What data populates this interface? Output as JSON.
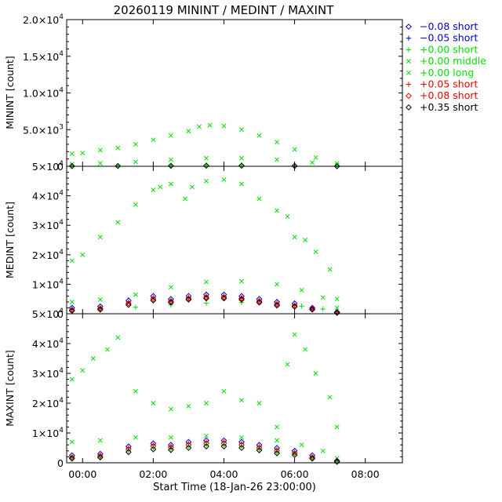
{
  "chart_data": {
    "type": "scatter",
    "title": "20260119 MININT / MEDINT / MAXINT",
    "xlabel": "Start Time (18-Jan-26 23:00:00)",
    "x_unit": "hours after 18-Jan-26 23:00:00",
    "xlim": [
      0.55,
      10.05
    ],
    "x_tick_values": [
      1,
      3,
      5,
      7,
      9
    ],
    "x_tick_labels": [
      "00:00",
      "02:00",
      "04:00",
      "06:00",
      "08:00"
    ],
    "legend_position": "right",
    "legend": [
      {
        "value": "−0.08",
        "kind": "short",
        "marker": "diamond",
        "color": "#0000cc"
      },
      {
        "value": "−0.05",
        "kind": "short",
        "marker": "plus",
        "color": "#0000cc"
      },
      {
        "value": "+0.00",
        "kind": "short",
        "marker": "plus",
        "color": "#00dd00"
      },
      {
        "value": "+0.00",
        "kind": "middle",
        "marker": "cross",
        "color": "#00dd00"
      },
      {
        "value": "+0.00",
        "kind": "long",
        "marker": "cross",
        "color": "#00dd00"
      },
      {
        "value": "+0.05",
        "kind": "short",
        "marker": "plus",
        "color": "#ee0000"
      },
      {
        "value": "+0.08",
        "kind": "short",
        "marker": "diamond",
        "color": "#ee0000"
      },
      {
        "value": "+0.35",
        "kind": "short",
        "marker": "diamond",
        "color": "#000000"
      }
    ],
    "panels": [
      {
        "name": "MININT",
        "ylabel": "MININT [count]",
        "ylim": [
          0,
          20000
        ],
        "y_tick_values": [
          0,
          5000,
          10000,
          15000,
          20000
        ],
        "y_tick_labels": [
          {
            "mant": "0",
            "exp": ""
          },
          {
            "mant": "5.0×10",
            "exp": "3"
          },
          {
            "mant": "1.0×10",
            "exp": "4"
          },
          {
            "mant": "1.5×10",
            "exp": "4"
          },
          {
            "mant": "2.0×10",
            "exp": "4"
          }
        ],
        "series": [
          {
            "name": "+0.00 long",
            "marker": "cross",
            "color": "#00dd00",
            "x": [
              0.7,
              1.0,
              1.5,
              2.0,
              2.5,
              3.0,
              3.5,
              4.0,
              4.3,
              4.6,
              5.0,
              5.5,
              6.0,
              6.5,
              7.0,
              7.6,
              8.2
            ],
            "y": [
              1700,
              1800,
              2200,
              2500,
              3000,
              3600,
              4200,
              4800,
              5400,
              5600,
              5500,
              5000,
              4200,
              3300,
              2300,
              1200,
              400
            ]
          },
          {
            "name": "+0.00 middle",
            "marker": "cross",
            "color": "#00dd00",
            "x": [
              0.7,
              1.5,
              2.5,
              3.5,
              4.5,
              5.5,
              6.5,
              7.5,
              8.2
            ],
            "y": [
              300,
              400,
              600,
              900,
              1100,
              1100,
              900,
              500,
              150
            ]
          },
          {
            "name": "+0.00 short",
            "marker": "plus",
            "color": "#00dd00",
            "x": [
              0.7,
              2.0,
              3.5,
              4.5,
              5.5,
              7.0,
              8.2
            ],
            "y": [
              80,
              100,
              150,
              200,
              200,
              120,
              40
            ]
          },
          {
            "name": "+0.35 short",
            "marker": "diamond",
            "color": "#000000",
            "x": [
              0.7,
              2.0,
              3.5,
              4.5,
              5.5,
              7.0,
              8.2
            ],
            "y": [
              30,
              40,
              60,
              80,
              80,
              50,
              15
            ]
          }
        ]
      },
      {
        "name": "MEDINT",
        "ylabel": "MEDINT [count]",
        "ylim": [
          0,
          50000
        ],
        "y_tick_values": [
          0,
          10000,
          20000,
          30000,
          40000,
          50000
        ],
        "y_tick_labels": [
          {
            "mant": "0",
            "exp": ""
          },
          {
            "mant": "1×10",
            "exp": "4"
          },
          {
            "mant": "2×10",
            "exp": "4"
          },
          {
            "mant": "3×10",
            "exp": "4"
          },
          {
            "mant": "4×10",
            "exp": "4"
          },
          {
            "mant": "5×10",
            "exp": "4"
          }
        ],
        "series": [
          {
            "name": "+0.00 long",
            "marker": "cross",
            "color": "#00dd00",
            "x": [
              0.7,
              1.0,
              1.5,
              2.0,
              2.5,
              3.0,
              3.2,
              3.5,
              3.9,
              4.1,
              4.5,
              5.0,
              5.5,
              6.0,
              6.5,
              6.8,
              7.0,
              7.3,
              7.6,
              8.0,
              8.2
            ],
            "y": [
              18000,
              20000,
              26000,
              31000,
              37000,
              42000,
              43000,
              44000,
              39000,
              43000,
              45000,
              45500,
              44000,
              39000,
              35000,
              33000,
              26000,
              25000,
              21000,
              15000,
              5000
            ]
          },
          {
            "name": "+0.00 middle",
            "marker": "cross",
            "color": "#00dd00",
            "x": [
              0.7,
              1.5,
              2.5,
              3.5,
              4.5,
              5.5,
              6.5,
              7.2,
              7.8,
              8.2
            ],
            "y": [
              4000,
              4800,
              6500,
              9000,
              10800,
              11000,
              10000,
              8000,
              5500,
              2000
            ]
          },
          {
            "name": "+0.00 short",
            "marker": "plus",
            "color": "#00dd00",
            "x": [
              0.7,
              1.5,
              2.5,
              3.5,
              4.5,
              5.5,
              6.5,
              7.2,
              7.8,
              8.2
            ],
            "y": [
              1500,
              1800,
              2200,
              3000,
              3600,
              3800,
              3500,
              2600,
              1600,
              600
            ]
          },
          {
            "name": "−0.08 short",
            "marker": "diamond",
            "color": "#0000cc",
            "x": [
              0.7,
              1.5,
              2.3,
              3.0,
              3.5,
              4.0,
              4.5,
              5.0,
              5.5,
              6.0,
              6.5,
              7.0,
              7.5,
              8.2
            ],
            "y": [
              2000,
              2500,
              4500,
              6000,
              5000,
              6000,
              6500,
              6500,
              6000,
              5000,
              4000,
              3500,
              2000,
              600
            ]
          },
          {
            "name": "+0.05 short",
            "marker": "plus",
            "color": "#ee0000",
            "x": [
              0.7,
              1.5,
              2.3,
              3.0,
              3.5,
              4.0,
              4.5,
              5.0,
              5.5,
              6.0,
              6.5,
              7.0,
              7.5,
              8.2
            ],
            "y": [
              1500,
              2000,
              4000,
              5500,
              4500,
              5500,
              6000,
              6000,
              5500,
              4500,
              3500,
              3000,
              1800,
              500
            ]
          },
          {
            "name": "+0.08 short",
            "marker": "diamond",
            "color": "#ee0000",
            "x": [
              0.7,
              1.5,
              2.3,
              3.0,
              3.5,
              4.0,
              4.5,
              5.0,
              5.5,
              6.0,
              6.5,
              7.0,
              7.5,
              8.2
            ],
            "y": [
              1300,
              1800,
              3500,
              5000,
              4200,
              5200,
              5600,
              5600,
              5200,
              4200,
              3200,
              2700,
              1600,
              400
            ]
          },
          {
            "name": "+0.35 short",
            "marker": "diamond",
            "color": "#000000",
            "x": [
              0.7,
              1.5,
              2.3,
              3.0,
              3.5,
              4.0,
              4.5,
              5.0,
              5.5,
              6.0,
              6.5,
              7.0,
              7.5,
              8.2
            ],
            "y": [
              1000,
              1400,
              3000,
              4500,
              3800,
              4800,
              5200,
              5200,
              4800,
              3800,
              2800,
              2400,
              1400,
              300
            ]
          }
        ]
      },
      {
        "name": "MAXINT",
        "ylabel": "MAXINT [count]",
        "ylim": [
          0,
          50000
        ],
        "y_tick_values": [
          0,
          10000,
          20000,
          30000,
          40000,
          50000
        ],
        "y_tick_labels": [
          {
            "mant": "0",
            "exp": ""
          },
          {
            "mant": "1×10",
            "exp": "4"
          },
          {
            "mant": "2×10",
            "exp": "4"
          },
          {
            "mant": "3×10",
            "exp": "4"
          },
          {
            "mant": "4×10",
            "exp": "4"
          },
          {
            "mant": "5×10",
            "exp": "4"
          }
        ],
        "series": [
          {
            "name": "+0.00 long",
            "marker": "cross",
            "color": "#00dd00",
            "x": [
              0.7,
              1.0,
              1.3,
              1.7,
              2.0,
              2.5,
              3.0,
              3.5,
              4.0,
              4.5,
              5.0,
              5.5,
              6.0,
              6.5,
              6.8,
              7.0,
              7.3,
              7.6,
              8.0,
              8.2
            ],
            "y": [
              28000,
              31000,
              35000,
              38000,
              42000,
              24000,
              20000,
              18000,
              19000,
              20000,
              24000,
              21000,
              20000,
              12000,
              33000,
              43000,
              38000,
              30000,
              22000,
              12000
            ]
          },
          {
            "name": "+0.00 middle",
            "marker": "cross",
            "color": "#00dd00",
            "x": [
              0.7,
              1.5,
              2.5,
              3.5,
              4.5,
              5.5,
              6.5,
              7.2,
              7.8,
              8.2
            ],
            "y": [
              7000,
              7500,
              8500,
              8500,
              9000,
              8500,
              7500,
              6000,
              4000,
              1500
            ]
          },
          {
            "name": "−0.08 short",
            "marker": "diamond",
            "color": "#0000cc",
            "x": [
              0.7,
              1.5,
              2.3,
              3.0,
              3.5,
              4.0,
              4.5,
              5.0,
              5.5,
              6.0,
              6.5,
              7.0,
              7.5,
              8.2
            ],
            "y": [
              2500,
              3000,
              5500,
              6500,
              6000,
              7000,
              7500,
              7500,
              7000,
              6000,
              5000,
              4000,
              2500,
              700
            ]
          },
          {
            "name": "+0.05 short",
            "marker": "plus",
            "color": "#ee0000",
            "x": [
              0.7,
              1.5,
              2.3,
              3.0,
              3.5,
              4.0,
              4.5,
              5.0,
              5.5,
              6.0,
              6.5,
              7.0,
              7.5,
              8.2
            ],
            "y": [
              2000,
              2500,
              5000,
              6000,
              5500,
              6500,
              7000,
              7000,
              6500,
              5500,
              4500,
              3500,
              2000,
              500
            ]
          },
          {
            "name": "+0.08 short",
            "marker": "diamond",
            "color": "#ee0000",
            "x": [
              0.7,
              1.5,
              2.3,
              3.0,
              3.5,
              4.0,
              4.5,
              5.0,
              5.5,
              6.0,
              6.5,
              7.0,
              7.5,
              8.2
            ],
            "y": [
              1800,
              2300,
              4600,
              5600,
              5200,
              6000,
              6500,
              6500,
              6000,
              5000,
              4000,
              3200,
              1800,
              400
            ]
          },
          {
            "name": "+0.00 short",
            "marker": "plus",
            "color": "#00dd00",
            "x": [
              0.7,
              1.5,
              2.3,
              3.0,
              3.5,
              4.0,
              4.5,
              5.0,
              5.5,
              6.0,
              6.5,
              7.0,
              7.5,
              8.2
            ],
            "y": [
              1600,
              2000,
              4000,
              5000,
              4700,
              5500,
              6000,
              6000,
              5500,
              4600,
              3600,
              3000,
              1600,
              350
            ]
          },
          {
            "name": "+0.35 short",
            "marker": "diamond",
            "color": "#000000",
            "x": [
              0.7,
              1.5,
              2.3,
              3.0,
              3.5,
              4.0,
              4.5,
              5.0,
              5.5,
              6.0,
              6.5,
              7.0,
              7.5,
              8.2
            ],
            "y": [
              1400,
              1800,
              3600,
              4500,
              4300,
              5000,
              5500,
              5500,
              5000,
              4200,
              3200,
              2600,
              1400,
              300
            ]
          }
        ]
      }
    ]
  }
}
